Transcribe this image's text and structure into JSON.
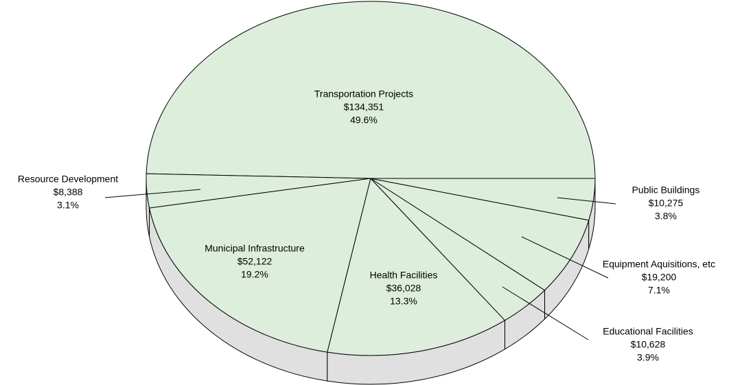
{
  "chart_data": {
    "type": "pie",
    "categories": [
      "Transportation Projects",
      "Resource Development",
      "Municipal Infrastructure",
      "Health Facilities",
      "Educational Facilities",
      "Equipment Aquisitions, etc",
      "Public Buildings"
    ],
    "values": [
      134351,
      8388,
      52122,
      36028,
      10628,
      19200,
      10275
    ],
    "value_labels": [
      "$134,351",
      "$8,388",
      "$52,122",
      "$36,028",
      "$10,628",
      "$19,200",
      "$10,275"
    ],
    "percents": [
      49.6,
      3.1,
      19.2,
      13.3,
      3.9,
      7.1,
      3.8
    ],
    "percent_labels": [
      "49.6%",
      "3.1%",
      "19.2%",
      "13.3%",
      "3.9%",
      "7.1%",
      "3.8%"
    ],
    "color": "#ddeedd",
    "side_color": "#e0e0e0"
  }
}
